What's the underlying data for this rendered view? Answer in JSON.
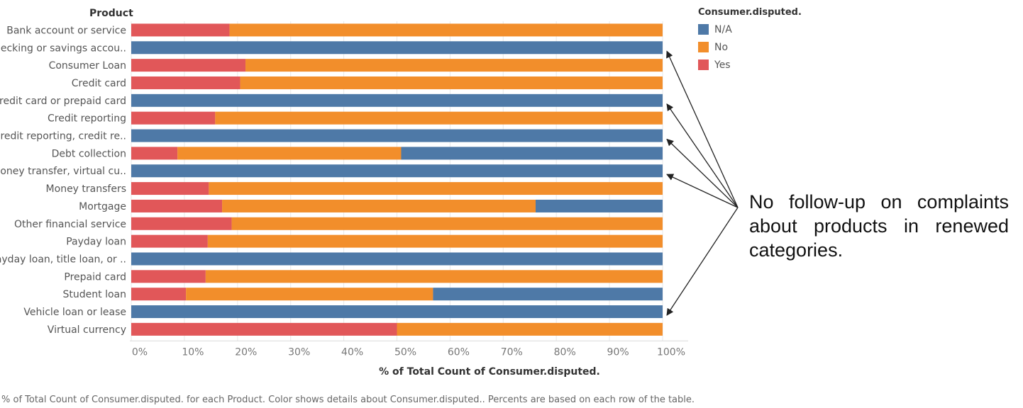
{
  "header": {
    "row_title": "Product"
  },
  "colors": {
    "N/A": "#4e79a7",
    "No": "#f28e2b",
    "Yes": "#e15759",
    "grid": "#e9e9e9",
    "annotation_arrow": "#222222"
  },
  "legend": {
    "title": "Consumer.disputed.",
    "items": [
      {
        "label": "N/A",
        "color": "#4e79a7"
      },
      {
        "label": "No",
        "color": "#f28e2b"
      },
      {
        "label": "Yes",
        "color": "#e15759"
      }
    ]
  },
  "annotation": {
    "text": "No follow-up on complaints about products in renewed categories."
  },
  "footer": {
    "text": "% of Total Count of Consumer.disputed. for each Product.  Color shows details about Consumer.disputed.. Percents are based on each row of the table."
  },
  "chart_data": {
    "type": "bar",
    "orientation": "horizontal",
    "stacked": true,
    "title": "",
    "xlabel": "% of Total Count of Consumer.disputed.",
    "ylabel": "Product",
    "xlim": [
      0,
      100
    ],
    "x_ticks": [
      "0%",
      "10%",
      "20%",
      "30%",
      "40%",
      "50%",
      "60%",
      "70%",
      "80%",
      "90%",
      "100%"
    ],
    "grid": true,
    "legend_position": "top-right",
    "categories": [
      "Bank account or service",
      "Checking or savings accou..",
      "Consumer Loan",
      "Credit card",
      "Credit card or prepaid card",
      "Credit reporting",
      "Credit reporting, credit re..",
      "Debt collection",
      "Money transfer, virtual cu..",
      "Money transfers",
      "Mortgage",
      "Other financial service",
      "Payday loan",
      "Payday loan, title loan, or ..",
      "Prepaid card",
      "Student loan",
      "Vehicle loan or lease",
      "Virtual currency"
    ],
    "series": [
      {
        "name": "Yes",
        "values": [
          18.5,
          0,
          21.5,
          20.5,
          0,
          15.8,
          0,
          8.7,
          0,
          14.6,
          17.1,
          18.9,
          14.4,
          0,
          14.0,
          10.3,
          0,
          50.0
        ]
      },
      {
        "name": "No",
        "values": [
          81.5,
          0,
          78.5,
          79.5,
          0,
          84.2,
          0,
          42.1,
          0,
          85.4,
          59.0,
          81.1,
          85.6,
          0,
          86.0,
          46.5,
          0,
          50.0
        ]
      },
      {
        "name": "N/A",
        "values": [
          0,
          100,
          0,
          0,
          100,
          0,
          100,
          49.2,
          100,
          0,
          23.9,
          0,
          0,
          100,
          0,
          43.2,
          100,
          0
        ]
      }
    ],
    "annotated_categories": [
      "Checking or savings accou..",
      "Credit card or prepaid card",
      "Credit reporting, credit re..",
      "Money transfer, virtual cu..",
      "Vehicle loan or lease"
    ]
  }
}
